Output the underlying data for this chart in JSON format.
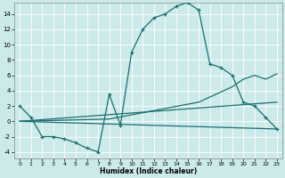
{
  "xlabel": "Humidex (Indice chaleur)",
  "bg_color": "#cceaea",
  "line_color": "#1a6e6e",
  "xlim": [
    -0.5,
    23.5
  ],
  "ylim": [
    -4.8,
    15.5
  ],
  "xticks": [
    0,
    1,
    2,
    3,
    4,
    5,
    6,
    7,
    8,
    9,
    10,
    11,
    12,
    13,
    14,
    15,
    16,
    17,
    18,
    19,
    20,
    21,
    22,
    23
  ],
  "yticks": [
    -4,
    -2,
    0,
    2,
    4,
    6,
    8,
    10,
    12,
    14
  ],
  "main_x": [
    0,
    1,
    2,
    3,
    4,
    5,
    6,
    7,
    8,
    9,
    10,
    11,
    12,
    13,
    14,
    15,
    16,
    17,
    18,
    19,
    20,
    21,
    22,
    23
  ],
  "main_y": [
    2,
    0.5,
    -2,
    -2,
    -2.3,
    -2.8,
    -3.5,
    -4.0,
    3.5,
    -0.5,
    9.0,
    12.0,
    13.5,
    14.0,
    15.0,
    15.5,
    14.5,
    7.5,
    7.0,
    6.0,
    2.5,
    2.0,
    0.5,
    -1.0
  ],
  "line2_x": [
    0,
    23
  ],
  "line2_y": [
    0,
    -1.0
  ],
  "line3_x": [
    0,
    8,
    16,
    19,
    20,
    21,
    22,
    23
  ],
  "line3_y": [
    0,
    0.3,
    2.5,
    4.5,
    5.5,
    6.0,
    5.5,
    6.2
  ],
  "line4_x": [
    0,
    23
  ],
  "line4_y": [
    0,
    2.5
  ]
}
